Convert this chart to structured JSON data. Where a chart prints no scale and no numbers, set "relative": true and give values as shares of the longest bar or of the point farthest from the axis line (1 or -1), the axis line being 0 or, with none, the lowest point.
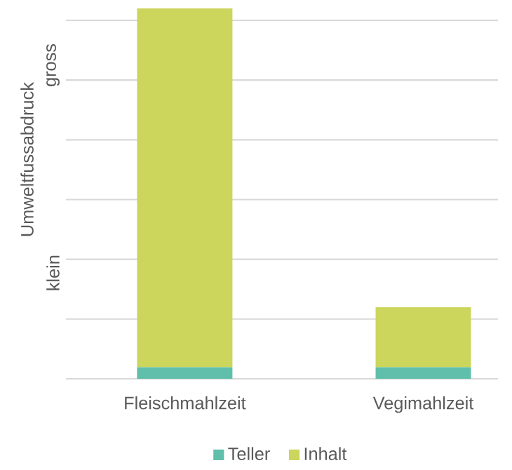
{
  "chart_data": {
    "type": "bar",
    "stacked": true,
    "relative": true,
    "ylabel": "Umweltfussabdruck",
    "categories": [
      "Fleischmahlzeit",
      "Vegimahlzeit"
    ],
    "series": [
      {
        "name": "Teller",
        "color": "#5fbfaa",
        "values": [
          0.031,
          0.031
        ]
      },
      {
        "name": "Inhalt",
        "color": "#ccd55c",
        "values": [
          0.969,
          0.162
        ]
      }
    ],
    "annotations": [
      "klein",
      "gross"
    ],
    "grid": "y",
    "legend": "bottom"
  }
}
